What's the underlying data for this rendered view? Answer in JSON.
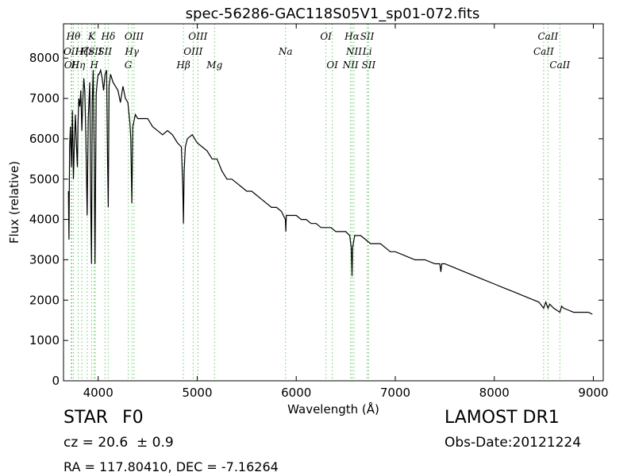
{
  "chart_data": {
    "type": "line",
    "title": "spec-56286-GAC118S05V1_sp01-072.fits",
    "xlabel": "Wavelength (Å)",
    "ylabel": "Flux (relative)",
    "xlim": [
      3650,
      9100
    ],
    "ylim": [
      0,
      8850
    ],
    "xticks": [
      4000,
      5000,
      6000,
      7000,
      8000,
      9000
    ],
    "yticks": [
      0,
      1000,
      2000,
      3000,
      4000,
      5000,
      6000,
      7000,
      8000
    ],
    "grid": false,
    "series_color": "#000000",
    "line_marker_color": "#66cc66",
    "spectrum": {
      "x": [
        3700,
        3705,
        3712,
        3720,
        3730,
        3740,
        3750,
        3760,
        3770,
        3780,
        3790,
        3797,
        3805,
        3815,
        3825,
        3835,
        3845,
        3855,
        3865,
        3875,
        3889,
        3900,
        3915,
        3925,
        3933,
        3940,
        3950,
        3960,
        3968,
        3980,
        3990,
        4000,
        4010,
        4025,
        4040,
        4055,
        4070,
        4085,
        4095,
        4102,
        4110,
        4125,
        4150,
        4175,
        4200,
        4225,
        4250,
        4275,
        4300,
        4320,
        4330,
        4340,
        4350,
        4375,
        4400,
        4450,
        4500,
        4550,
        4600,
        4650,
        4700,
        4750,
        4800,
        4840,
        4855,
        4861,
        4868,
        4880,
        4900,
        4950,
        5000,
        5050,
        5100,
        5150,
        5200,
        5250,
        5300,
        5350,
        5400,
        5450,
        5500,
        5550,
        5600,
        5650,
        5700,
        5750,
        5800,
        5850,
        5890,
        5895,
        5900,
        5950,
        6000,
        6050,
        6100,
        6150,
        6200,
        6250,
        6300,
        6350,
        6400,
        6450,
        6500,
        6540,
        6555,
        6563,
        6570,
        6590,
        6620,
        6650,
        6700,
        6750,
        6800,
        6850,
        6900,
        6950,
        7000,
        7100,
        7200,
        7300,
        7400,
        7450,
        7460,
        7470,
        7500,
        7600,
        7700,
        7800,
        7900,
        8000,
        8100,
        8200,
        8300,
        8400,
        8450,
        8498,
        8520,
        8542,
        8560,
        8600,
        8662,
        8680,
        8700,
        8750,
        8800,
        8850,
        8900,
        8950,
        8990
      ],
      "y": [
        4700,
        3500,
        5800,
        6300,
        5300,
        6700,
        5000,
        5900,
        6600,
        5900,
        5300,
        6400,
        7000,
        6800,
        7200,
        6200,
        6900,
        7500,
        7200,
        6100,
        4100,
        6500,
        7400,
        4500,
        2900,
        6900,
        7700,
        5600,
        2900,
        7100,
        7400,
        7600,
        7600,
        7700,
        7500,
        7200,
        7600,
        7700,
        5500,
        4300,
        7300,
        7600,
        7400,
        7300,
        7200,
        6900,
        7300,
        7000,
        6900,
        6400,
        6000,
        4400,
        6300,
        6600,
        6500,
        6500,
        6500,
        6300,
        6200,
        6100,
        6200,
        6100,
        5900,
        5800,
        4800,
        3900,
        5200,
        5800,
        6000,
        6100,
        5900,
        5800,
        5700,
        5500,
        5500,
        5200,
        5000,
        5000,
        4900,
        4800,
        4700,
        4700,
        4600,
        4500,
        4400,
        4300,
        4300,
        4200,
        4000,
        3700,
        4100,
        4100,
        4100,
        4000,
        4000,
        3900,
        3900,
        3800,
        3800,
        3800,
        3700,
        3700,
        3700,
        3600,
        3300,
        2600,
        3300,
        3600,
        3600,
        3600,
        3500,
        3400,
        3400,
        3400,
        3300,
        3200,
        3200,
        3100,
        3000,
        3000,
        2900,
        2900,
        2700,
        2900,
        2900,
        2800,
        2700,
        2600,
        2500,
        2400,
        2300,
        2200,
        2100,
        2000,
        1950,
        1800,
        1950,
        1800,
        1900,
        1800,
        1700,
        1850,
        1800,
        1750,
        1700,
        1700,
        1700,
        1700,
        1650
      ]
    },
    "lines": [
      {
        "x": 3727,
        "label": "OII",
        "row": 2
      },
      {
        "x": 3734,
        "label": "OII",
        "row": 3
      },
      {
        "x": 3750,
        "label": "Hθ",
        "row": 1
      },
      {
        "x": 3798,
        "label": "Hη",
        "row": 3
      },
      {
        "x": 3835,
        "label": "Hζ",
        "row": 2
      },
      {
        "x": 3889,
        "label": "Hε",
        "row": 2
      },
      {
        "x": 3934,
        "label": "K",
        "row": 1
      },
      {
        "x": 3960,
        "label": "H",
        "row": 3
      },
      {
        "x": 3970,
        "label": "SII",
        "row": 2
      },
      {
        "x": 4069,
        "label": "SII",
        "row": 2
      },
      {
        "x": 4102,
        "label": "Hδ",
        "row": 1
      },
      {
        "x": 4304,
        "label": "G",
        "row": 4
      },
      {
        "x": 4341,
        "label": "Hγ",
        "row": 2
      },
      {
        "x": 4363,
        "label": "OIII",
        "row": 1
      },
      {
        "x": 4861,
        "label": "Hβ",
        "row": 3
      },
      {
        "x": 4959,
        "label": "OIII",
        "row": 2
      },
      {
        "x": 5007,
        "label": "OIII",
        "row": 1
      },
      {
        "x": 5175,
        "label": "Mg",
        "row": 3
      },
      {
        "x": 5892,
        "label": "Na",
        "row": 2
      },
      {
        "x": 6300,
        "label": "OI",
        "row": 1
      },
      {
        "x": 6364,
        "label": "OI",
        "row": 3
      },
      {
        "x": 6548,
        "label": "NII",
        "row": 3
      },
      {
        "x": 6563,
        "label": "Hα",
        "row": 1
      },
      {
        "x": 6583,
        "label": "NII",
        "row": 2
      },
      {
        "x": 6716,
        "label": "SII",
        "row": 1
      },
      {
        "x": 6717,
        "label": "Li",
        "row": 2
      },
      {
        "x": 6731,
        "label": "SII",
        "row": 3
      },
      {
        "x": 8498,
        "label": "CaII",
        "row": 2
      },
      {
        "x": 8542,
        "label": "CaII",
        "row": 1
      },
      {
        "x": 8662,
        "label": "CaII",
        "row": 3
      }
    ]
  },
  "info": {
    "object_class": "STAR",
    "subclass": "F0",
    "redshift": "cz = 20.6  ± 0.9",
    "coords": "RA = 117.80410, DEC = -7.16264",
    "survey": "LAMOST DR1",
    "obs_date": "Obs-Date:20121224"
  }
}
